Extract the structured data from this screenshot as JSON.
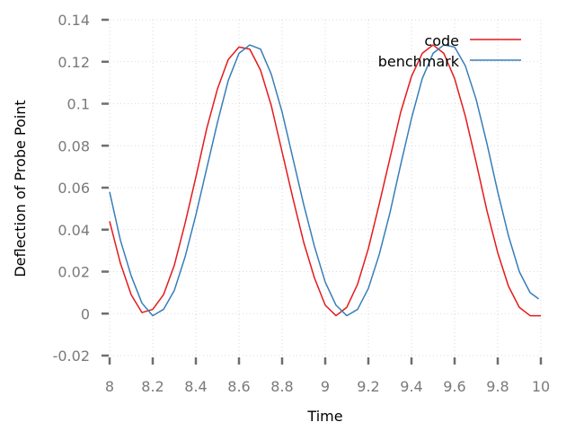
{
  "chart_data": {
    "type": "line",
    "xlabel": "Time",
    "ylabel": "Deflection of Probe Point",
    "xlim": [
      8,
      10
    ],
    "ylim": [
      -0.02,
      0.14
    ],
    "x_ticks": [
      8,
      8.2,
      8.4,
      8.6,
      8.8,
      9,
      9.2,
      9.4,
      9.6,
      9.8,
      10
    ],
    "x_tick_labels": [
      "8",
      "8.2",
      "8.4",
      "8.6",
      "8.8",
      "9",
      "9.2",
      "9.4",
      "9.6",
      "9.8",
      "10"
    ],
    "y_ticks": [
      -0.02,
      0,
      0.02,
      0.04,
      0.06,
      0.08,
      0.1,
      0.12,
      0.14
    ],
    "y_tick_labels": [
      "-0.02",
      "0",
      "0.02",
      "0.04",
      "0.06",
      "0.08",
      "0.1",
      "0.12",
      "0.14"
    ],
    "grid": true,
    "legend_position": "top-right",
    "series": [
      {
        "name": "code",
        "color": "#e41a1c",
        "x": [
          8.0,
          8.05,
          8.1,
          8.15,
          8.2,
          8.25,
          8.3,
          8.35,
          8.4,
          8.45,
          8.5,
          8.55,
          8.6,
          8.65,
          8.7,
          8.75,
          8.8,
          8.85,
          8.9,
          8.95,
          9.0,
          9.05,
          9.1,
          9.15,
          9.2,
          9.25,
          9.3,
          9.35,
          9.4,
          9.45,
          9.5,
          9.55,
          9.6,
          9.65,
          9.7,
          9.75,
          9.8,
          9.85,
          9.9,
          9.95,
          10.0
        ],
        "y": [
          0.044,
          0.024,
          0.009,
          0.0005,
          0.002,
          0.009,
          0.023,
          0.043,
          0.065,
          0.088,
          0.107,
          0.121,
          0.127,
          0.126,
          0.116,
          0.099,
          0.077,
          0.055,
          0.034,
          0.017,
          0.004,
          -0.001,
          0.003,
          0.014,
          0.031,
          0.052,
          0.074,
          0.096,
          0.113,
          0.124,
          0.128,
          0.124,
          0.112,
          0.094,
          0.072,
          0.049,
          0.029,
          0.013,
          0.003,
          -0.001,
          -0.001
        ]
      },
      {
        "name": "benchmark",
        "color": "#377eb8",
        "x": [
          8.0,
          8.05,
          8.1,
          8.15,
          8.2,
          8.25,
          8.3,
          8.35,
          8.4,
          8.45,
          8.5,
          8.55,
          8.6,
          8.65,
          8.7,
          8.75,
          8.8,
          8.85,
          8.9,
          8.95,
          9.0,
          9.05,
          9.1,
          9.15,
          9.2,
          9.25,
          9.3,
          9.35,
          9.4,
          9.45,
          9.5,
          9.55,
          9.6,
          9.65,
          9.7,
          9.75,
          9.8,
          9.85,
          9.9,
          9.95,
          9.99
        ],
        "y": [
          0.058,
          0.035,
          0.018,
          0.005,
          -0.001,
          0.002,
          0.011,
          0.027,
          0.047,
          0.069,
          0.091,
          0.111,
          0.124,
          0.128,
          0.126,
          0.114,
          0.096,
          0.074,
          0.052,
          0.032,
          0.015,
          0.004,
          -0.001,
          0.002,
          0.012,
          0.028,
          0.048,
          0.071,
          0.093,
          0.112,
          0.124,
          0.128,
          0.127,
          0.118,
          0.102,
          0.081,
          0.058,
          0.037,
          0.02,
          0.01,
          0.007
        ]
      }
    ]
  }
}
